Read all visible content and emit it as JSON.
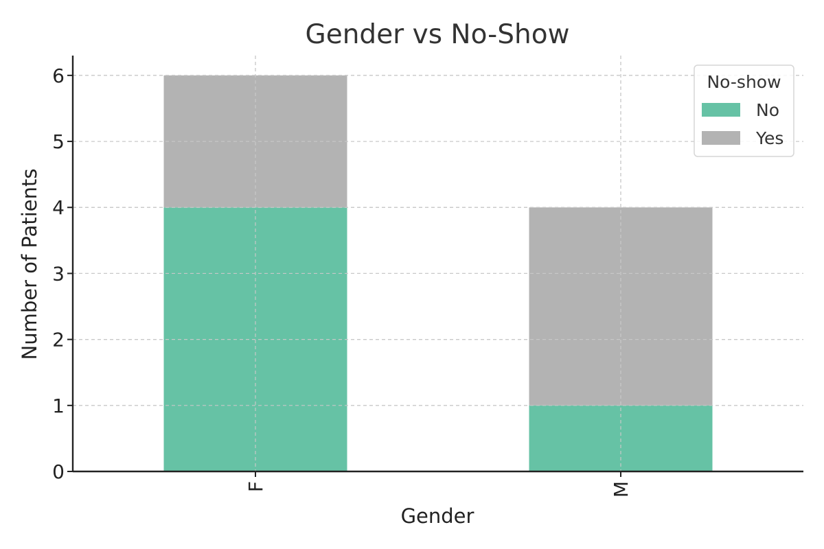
{
  "chart_data": {
    "type": "bar",
    "stacked": true,
    "title": "Gender vs No-Show",
    "xlabel": "Gender",
    "ylabel": "Number of Patients",
    "categories": [
      "F",
      "M"
    ],
    "series": [
      {
        "name": "No",
        "values": [
          4,
          1
        ],
        "color": "#66c2a5"
      },
      {
        "name": "Yes",
        "values": [
          2,
          3
        ],
        "color": "#b3b3b3"
      }
    ],
    "ylim": [
      0,
      6.3
    ],
    "yticks": [
      0,
      1,
      2,
      3,
      4,
      5,
      6
    ],
    "grid": true,
    "legend": {
      "title": "No-show",
      "position": "top-right"
    }
  }
}
